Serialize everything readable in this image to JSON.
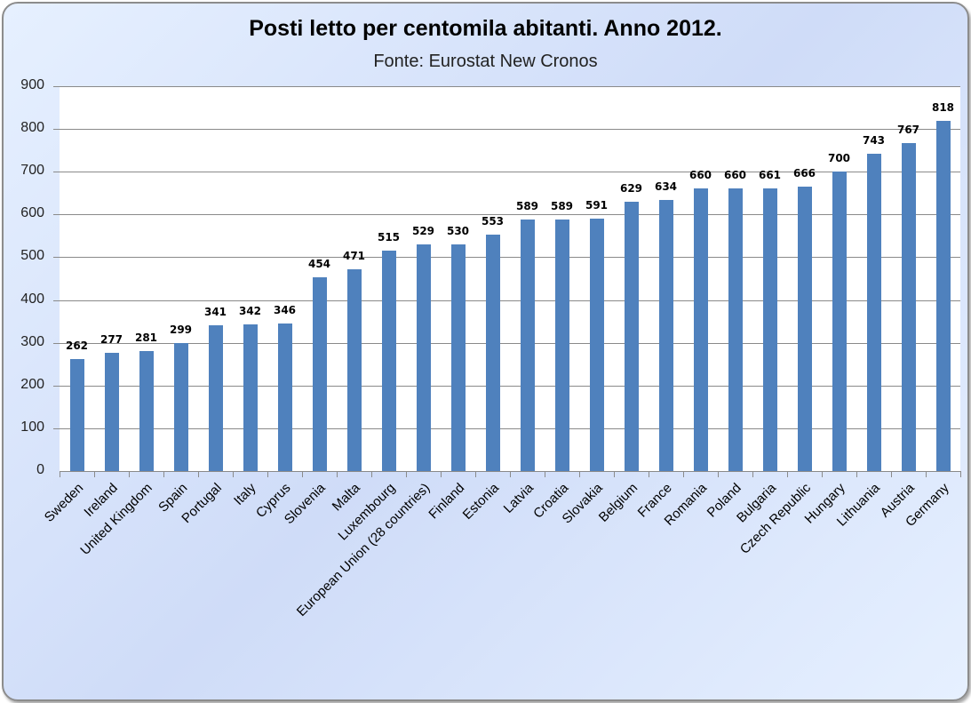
{
  "chart_data": {
    "type": "bar",
    "title": "Posti letto per centomila abitanti. Anno 2012.",
    "subtitle": "Fonte: Eurostat New Cronos",
    "xlabel": "",
    "ylabel": "",
    "ylim": [
      0,
      900
    ],
    "yticks": [
      0,
      100,
      200,
      300,
      400,
      500,
      600,
      700,
      800,
      900
    ],
    "grid": true,
    "legend": null,
    "bar_color": "#4f81bd",
    "data_labels": true,
    "categories": [
      "Sweden",
      "Ireland",
      "United Kingdom",
      "Spain",
      "Portugal",
      "Italy",
      "Cyprus",
      "Slovenia",
      "Malta",
      "Luxembourg",
      "European Union (28 countries)",
      "Finland",
      "Estonia",
      "Latvia",
      "Croatia",
      "Slovakia",
      "Belgium",
      "France",
      "Romania",
      "Poland",
      "Bulgaria",
      "Czech Republic",
      "Hungary",
      "Lithuania",
      "Austria",
      "Germany"
    ],
    "values": [
      262,
      277,
      281,
      299,
      341,
      342,
      346,
      454,
      471,
      515,
      529,
      530,
      553,
      589,
      589,
      591,
      629,
      634,
      660,
      660,
      661,
      666,
      700,
      743,
      767,
      818
    ]
  }
}
